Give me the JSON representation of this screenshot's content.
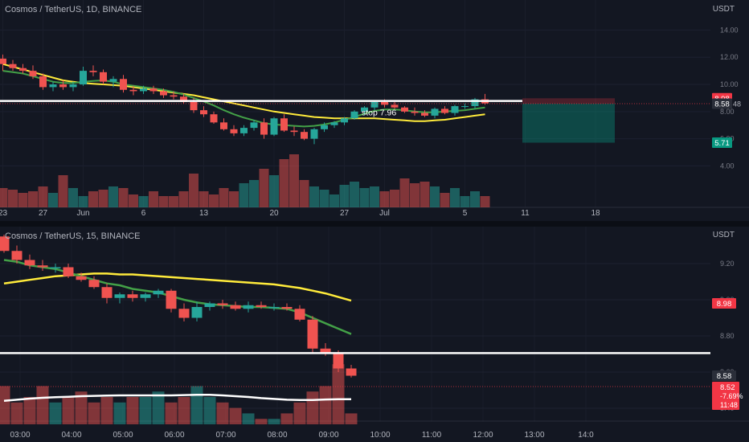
{
  "charts": [
    {
      "title": "Cosmos / TetherUS, 1D, BINANCE",
      "unit": "USDT",
      "y_ticks": [
        "14.00",
        "12.00",
        "10.00",
        "8.00",
        "6.00",
        "4.00"
      ],
      "y_tick_values": [
        14,
        12,
        10,
        8,
        6,
        4
      ],
      "x_ticks": [
        "23",
        "27",
        "Jun",
        "6",
        "13",
        "20",
        "27",
        "Jul",
        "5",
        "11",
        "18"
      ],
      "price_badges": [
        {
          "label": "8.98",
          "value": 8.98,
          "color": "#f23645"
        },
        {
          "label": "8.58",
          "value": 8.58,
          "color": "#2a2e39"
        },
        {
          "label": "5.71",
          "value": 5.71,
          "color": "#089981"
        }
      ],
      "badge_suffix": "48",
      "annotation": "stop 7.96",
      "stop_level": 7.96,
      "horizontal_line": 8.78,
      "position": {
        "entry": 8.58,
        "stop": 8.98,
        "target": 5.71
      },
      "colors": {
        "up": "#26a69a",
        "down": "#ef5350",
        "ma_fast": "#43a047",
        "ma_slow": "#ffeb3b",
        "level": "#ffffff"
      }
    },
    {
      "title": "Cosmos / TetherUS, 15, BINANCE",
      "unit": "USDT",
      "y_ticks": [
        "9.20",
        "9.00",
        "8.80",
        "8.60",
        "8.40"
      ],
      "y_tick_values": [
        9.2,
        9.0,
        8.8,
        8.6,
        8.4
      ],
      "x_ticks": [
        "03:00",
        "04:00",
        "05:00",
        "06:00",
        "07:00",
        "08:00",
        "09:00",
        "10:00",
        "11:00",
        "12:00",
        "13:00",
        "14:0"
      ],
      "price_badges": [
        {
          "label": "8.98",
          "value": 8.98,
          "color": "#f23645"
        },
        {
          "label": "8.58",
          "value": 8.58,
          "color": "#2a2e39"
        }
      ],
      "last_price_box": {
        "price": "8.52",
        "change": "-7.69%",
        "countdown": "11:48",
        "value": 8.52,
        "color": "#f23645"
      },
      "horizontal_line": 8.705,
      "colors": {
        "up": "#26a69a",
        "down": "#ef5350",
        "ma_fast": "#43a047",
        "ma_slow": "#ffeb3b",
        "volume_ma": "#ffffff"
      }
    }
  ],
  "chart_data": [
    {
      "type": "candlestick",
      "title": "Cosmos / TetherUS, 1D, BINANCE",
      "ylabel": "USDT",
      "ylim": [
        3.0,
        14.5
      ],
      "x_tick_positions": [
        0,
        4,
        8,
        14,
        20,
        27,
        34,
        38,
        46,
        52,
        59
      ],
      "ohlc": [
        [
          11.9,
          12.2,
          11.0,
          11.5
        ],
        [
          11.5,
          11.8,
          11.0,
          11.2
        ],
        [
          11.2,
          11.5,
          10.8,
          11.0
        ],
        [
          11.0,
          11.4,
          10.4,
          10.6
        ],
        [
          10.6,
          10.8,
          9.6,
          9.8
        ],
        [
          9.8,
          10.2,
          9.5,
          10.0
        ],
        [
          10.0,
          10.3,
          9.6,
          9.8
        ],
        [
          9.8,
          10.2,
          9.5,
          10.0
        ],
        [
          10.0,
          11.3,
          9.9,
          11.0
        ],
        [
          11.0,
          11.4,
          10.6,
          10.9
        ],
        [
          10.9,
          11.1,
          10.0,
          10.2
        ],
        [
          10.2,
          10.6,
          9.8,
          10.4
        ],
        [
          10.4,
          10.7,
          9.4,
          9.6
        ],
        [
          9.6,
          9.9,
          9.2,
          9.5
        ],
        [
          9.5,
          9.9,
          9.3,
          9.7
        ],
        [
          9.7,
          9.9,
          9.3,
          9.5
        ],
        [
          9.5,
          9.7,
          9.0,
          9.2
        ],
        [
          9.2,
          9.5,
          8.9,
          9.1
        ],
        [
          9.1,
          9.3,
          8.6,
          8.7
        ],
        [
          8.7,
          9.0,
          7.9,
          8.1
        ],
        [
          8.1,
          8.4,
          7.6,
          7.8
        ],
        [
          7.8,
          8.0,
          7.1,
          7.2
        ],
        [
          7.2,
          7.5,
          6.6,
          6.7
        ],
        [
          6.7,
          7.0,
          6.2,
          6.4
        ],
        [
          6.4,
          7.0,
          6.2,
          6.8
        ],
        [
          6.8,
          7.4,
          6.6,
          7.2
        ],
        [
          7.2,
          7.5,
          6.0,
          6.3
        ],
        [
          6.3,
          7.6,
          6.2,
          7.5
        ],
        [
          7.5,
          7.8,
          6.5,
          6.6
        ],
        [
          6.6,
          6.9,
          6.2,
          6.5
        ],
        [
          6.5,
          6.7,
          5.9,
          6.0
        ],
        [
          6.0,
          6.8,
          5.6,
          6.7
        ],
        [
          6.7,
          7.2,
          6.5,
          7.0
        ],
        [
          7.0,
          7.3,
          6.8,
          7.2
        ],
        [
          7.2,
          7.6,
          7.0,
          7.5
        ],
        [
          7.5,
          8.1,
          7.4,
          8.0
        ],
        [
          8.0,
          8.4,
          7.8,
          8.3
        ],
        [
          8.3,
          8.8,
          8.1,
          8.7
        ],
        [
          8.7,
          8.9,
          8.3,
          8.5
        ],
        [
          8.5,
          8.7,
          8.2,
          8.3
        ],
        [
          8.3,
          8.4,
          7.9,
          8.0
        ],
        [
          8.0,
          8.3,
          7.7,
          7.9
        ],
        [
          7.9,
          8.1,
          7.6,
          7.7
        ],
        [
          7.7,
          8.3,
          7.5,
          8.2
        ],
        [
          8.2,
          8.4,
          7.8,
          7.9
        ],
        [
          7.9,
          8.5,
          7.7,
          8.4
        ],
        [
          8.4,
          8.6,
          8.2,
          8.4
        ],
        [
          8.4,
          9.0,
          8.2,
          8.9
        ],
        [
          8.9,
          9.3,
          8.5,
          8.6
        ]
      ],
      "volume": [
        24,
        22,
        18,
        20,
        26,
        18,
        40,
        24,
        14,
        20,
        22,
        26,
        24,
        16,
        14,
        20,
        14,
        14,
        20,
        42,
        20,
        16,
        24,
        20,
        30,
        34,
        48,
        40,
        60,
        66,
        34,
        26,
        22,
        16,
        28,
        32,
        24,
        26,
        20,
        22,
        36,
        30,
        32,
        26,
        18,
        24,
        14,
        20,
        14
      ],
      "series": [
        {
          "name": "",
          "values": [
            11.5,
            11.3,
            11.1,
            10.9,
            10.7,
            10.5,
            10.3,
            10.2,
            10.1,
            10.05,
            10.0,
            9.95,
            9.9,
            9.8,
            9.7,
            9.6,
            9.5,
            9.4,
            9.3,
            9.2,
            9.05,
            8.9,
            8.75,
            8.6,
            8.45,
            8.3,
            8.15,
            8.0,
            7.9,
            7.8,
            7.7,
            7.6,
            7.55,
            7.5,
            7.5,
            7.5,
            7.5,
            7.5,
            7.45,
            7.4,
            7.35,
            7.3,
            7.3,
            7.35,
            7.4,
            7.5,
            7.6,
            7.7,
            7.8
          ]
        },
        {
          "name": "",
          "values": [
            11.0,
            10.9,
            10.8,
            10.6,
            10.4,
            10.2,
            10.1,
            10.1,
            10.2,
            10.25,
            10.3,
            10.2,
            10.0,
            9.9,
            9.8,
            9.7,
            9.6,
            9.45,
            9.25,
            9.0,
            8.75,
            8.45,
            8.1,
            7.8,
            7.55,
            7.35,
            7.15,
            7.05,
            7.0,
            6.95,
            6.9,
            6.95,
            7.05,
            7.2,
            7.4,
            7.6,
            7.85,
            8.05,
            8.15,
            8.15,
            8.1,
            8.0,
            7.95,
            7.95,
            8.0,
            8.05,
            8.1,
            8.2,
            8.3
          ]
        }
      ]
    },
    {
      "type": "candlestick",
      "title": "Cosmos / TetherUS, 15, BINANCE",
      "ylabel": "USDT",
      "ylim": [
        8.31,
        9.35
      ],
      "x_tick_positions": [
        1.25,
        5.25,
        9.25,
        13.25,
        17.25,
        21.25,
        25.25,
        29.25,
        33.25,
        37.25,
        41.25,
        45.25
      ],
      "ohlc": [
        [
          9.35,
          9.36,
          9.26,
          9.27
        ],
        [
          9.27,
          9.3,
          9.2,
          9.22
        ],
        [
          9.22,
          9.25,
          9.17,
          9.19
        ],
        [
          9.19,
          9.22,
          9.16,
          9.18
        ],
        [
          9.18,
          9.2,
          9.15,
          9.18
        ],
        [
          9.18,
          9.2,
          9.12,
          9.13
        ],
        [
          9.13,
          9.15,
          9.1,
          9.11
        ],
        [
          9.11,
          9.13,
          9.06,
          9.07
        ],
        [
          9.07,
          9.09,
          8.98,
          9.01
        ],
        [
          9.01,
          9.04,
          8.98,
          9.03
        ],
        [
          9.03,
          9.05,
          8.99,
          9.01
        ],
        [
          9.01,
          9.04,
          8.99,
          9.03
        ],
        [
          9.03,
          9.06,
          9.01,
          9.05
        ],
        [
          9.05,
          9.06,
          8.93,
          8.95
        ],
        [
          8.95,
          8.98,
          8.88,
          8.9
        ],
        [
          8.9,
          8.99,
          8.88,
          8.96
        ],
        [
          8.96,
          8.99,
          8.94,
          8.98
        ],
        [
          8.98,
          9.0,
          8.95,
          8.97
        ],
        [
          8.97,
          8.99,
          8.94,
          8.95
        ],
        [
          8.95,
          8.99,
          8.93,
          8.97
        ],
        [
          8.97,
          8.99,
          8.95,
          8.96
        ],
        [
          8.96,
          8.98,
          8.94,
          8.96
        ],
        [
          8.96,
          8.98,
          8.94,
          8.95
        ],
        [
          8.95,
          8.97,
          8.88,
          8.89
        ],
        [
          8.89,
          8.91,
          8.7,
          8.73
        ],
        [
          8.73,
          8.76,
          8.69,
          8.7
        ],
        [
          8.7,
          8.72,
          8.6,
          8.62
        ],
        [
          8.62,
          8.64,
          8.57,
          8.58
        ]
      ],
      "volume": [
        14,
        8,
        10,
        14,
        8,
        10,
        12,
        8,
        10,
        8,
        10,
        10,
        12,
        8,
        10,
        14,
        10,
        8,
        6,
        4,
        2,
        2,
        4,
        8,
        12,
        14,
        22,
        4
      ],
      "volume_ma": [
        8.6,
        9.0,
        9.4,
        9.7,
        9.9,
        10.1,
        10.3,
        10.4,
        10.5,
        10.6,
        10.6,
        10.6,
        10.6,
        10.6,
        10.7,
        10.8,
        10.8,
        10.6,
        10.3,
        10.0,
        9.6,
        9.3,
        9.0,
        8.9,
        8.9,
        9.1,
        9.2,
        9.2
      ],
      "series": [
        {
          "name": "",
          "values": [
            9.09,
            9.1,
            9.11,
            9.12,
            9.13,
            9.135,
            9.14,
            9.145,
            9.145,
            9.14,
            9.14,
            9.135,
            9.13,
            9.125,
            9.12,
            9.115,
            9.11,
            9.105,
            9.1,
            9.095,
            9.09,
            9.085,
            9.075,
            9.065,
            9.05,
            9.035,
            9.015,
            8.995
          ]
        },
        {
          "name": "",
          "values": [
            9.22,
            9.21,
            9.19,
            9.18,
            9.17,
            9.15,
            9.13,
            9.11,
            9.09,
            9.08,
            9.06,
            9.05,
            9.04,
            9.02,
            9.0,
            8.985,
            8.975,
            8.97,
            8.965,
            8.96,
            8.96,
            8.955,
            8.95,
            8.93,
            8.9,
            8.87,
            8.84,
            8.81
          ]
        }
      ]
    }
  ]
}
